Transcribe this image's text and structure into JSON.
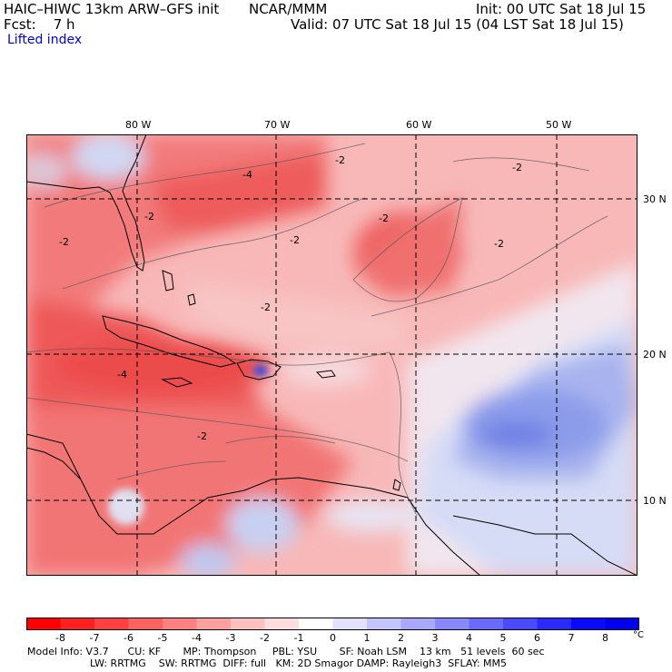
{
  "header": {
    "model_title": "HAIC–HIWC 13km ARW–GFS init",
    "center": "NCAR/MMM",
    "init": "Init: 00 UTC Sat 18 Jul 15",
    "fcst": "Fcst:    7 h",
    "valid": "Valid: 07 UTC Sat 18 Jul 15 (04 LST Sat 18 Jul 15)",
    "field": "Lifted index"
  },
  "map": {
    "lon_labels": [
      "80 W",
      "70 W",
      "60 W",
      "50 W"
    ],
    "lat_labels": [
      "30 N",
      "20 N",
      "10 N"
    ],
    "contour_labels": [
      "-2",
      "-2",
      "-2",
      "-2",
      "-2",
      "-2",
      "-2",
      "-4",
      "-4",
      "-2",
      "-2"
    ],
    "colors": {
      "strong_neg": "#f04848",
      "mid_neg": "#f47a7a",
      "weak_neg": "#f8b0b0",
      "neutral": "#f6e8ea",
      "weak_pos": "#d8dcf8",
      "mid_pos": "#a8b4f0",
      "strong_pos": "#6a7ee6"
    }
  },
  "colorbar": {
    "labels": [
      "-8",
      "-7",
      "-6",
      "-5",
      "-4",
      "-3",
      "-2",
      "-1",
      "0",
      "1",
      "2",
      "3",
      "4",
      "5",
      "6",
      "7",
      "8"
    ],
    "unit": "°C",
    "colors": [
      "#ff0000",
      "#ff2020",
      "#ff4040",
      "#ff6060",
      "#ff8080",
      "#ffa0a0",
      "#ffc0c0",
      "#ffdede",
      "#ffffff",
      "#e2e2ff",
      "#c4c4ff",
      "#a8a8ff",
      "#8888ff",
      "#6a6aff",
      "#4a4aff",
      "#2a2aff",
      "#0a0aff"
    ]
  },
  "footer": {
    "line1": "Model Info: V3.7      CU: KF       MP: Thompson     PBL: YSU       SF: Noah LSM    13 km   51 levels  60 sec",
    "line2": "LW: RRTMG    SW: RRTMG  DIFF: full   KM: 2D Smagor DAMP: Rayleigh3  SFLAY: MM5"
  }
}
